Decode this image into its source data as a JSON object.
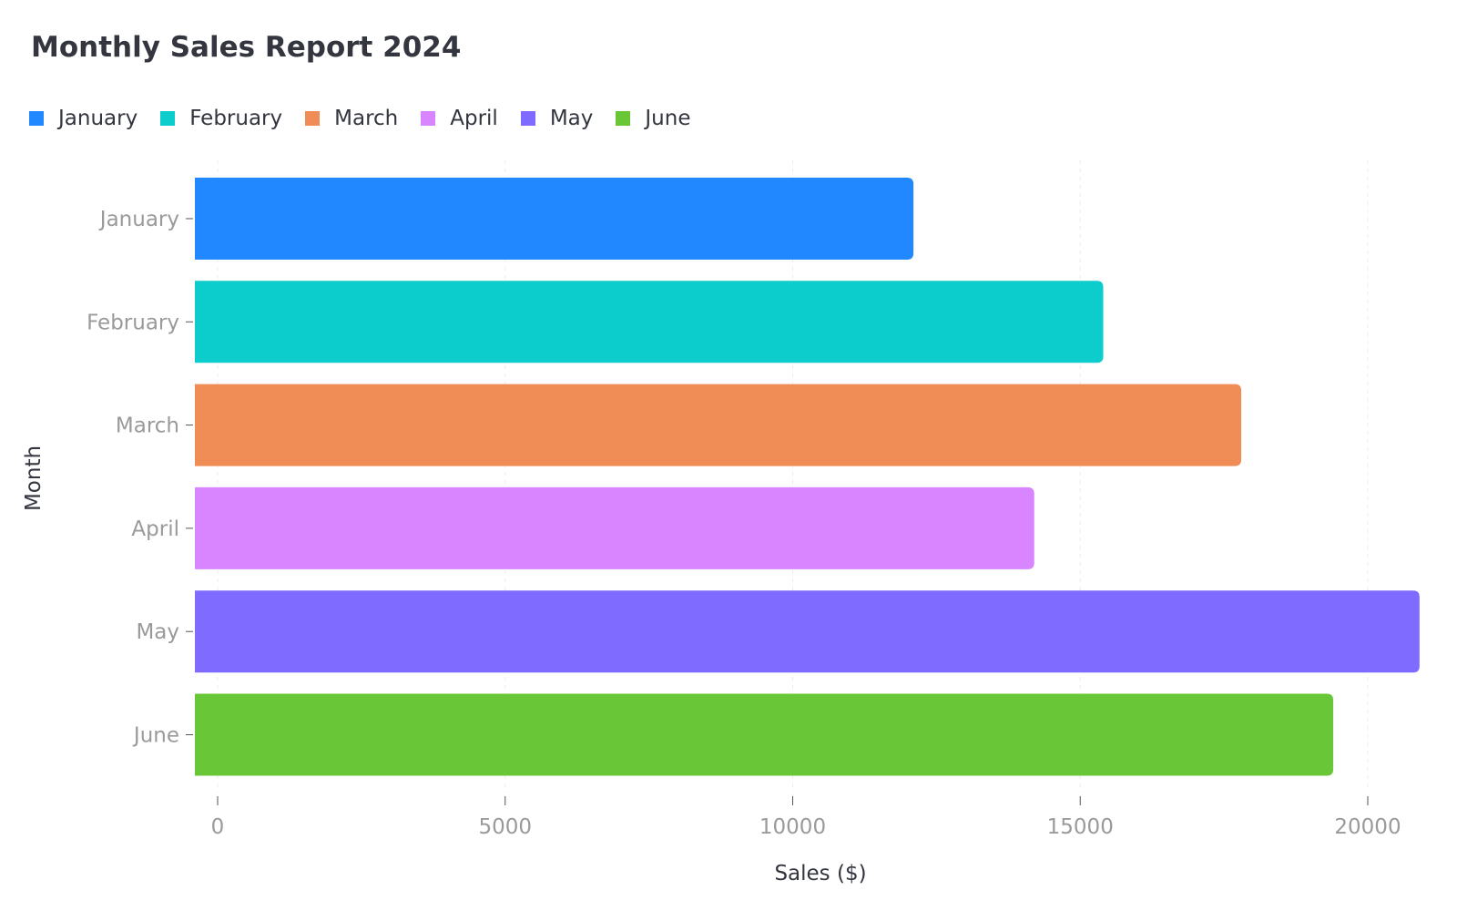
{
  "chart_data": {
    "type": "bar",
    "orientation": "horizontal",
    "title": "Monthly Sales Report 2024",
    "xlabel": "Sales ($)",
    "ylabel": "Month",
    "categories": [
      "January",
      "February",
      "March",
      "April",
      "May",
      "June"
    ],
    "values": [
      12100,
      15400,
      17800,
      14200,
      20900,
      19400
    ],
    "colors": [
      "#2288ff",
      "#0ccccc",
      "#f08c56",
      "#d885ff",
      "#7f6bff",
      "#69c737"
    ],
    "xlim": [
      0,
      20900
    ],
    "xticks": [
      0,
      5000,
      10000,
      15000,
      20000
    ],
    "legend": {
      "placement": "top-left",
      "entries": [
        "January",
        "February",
        "March",
        "April",
        "May",
        "June"
      ]
    },
    "grid": "vertical-dashed"
  }
}
